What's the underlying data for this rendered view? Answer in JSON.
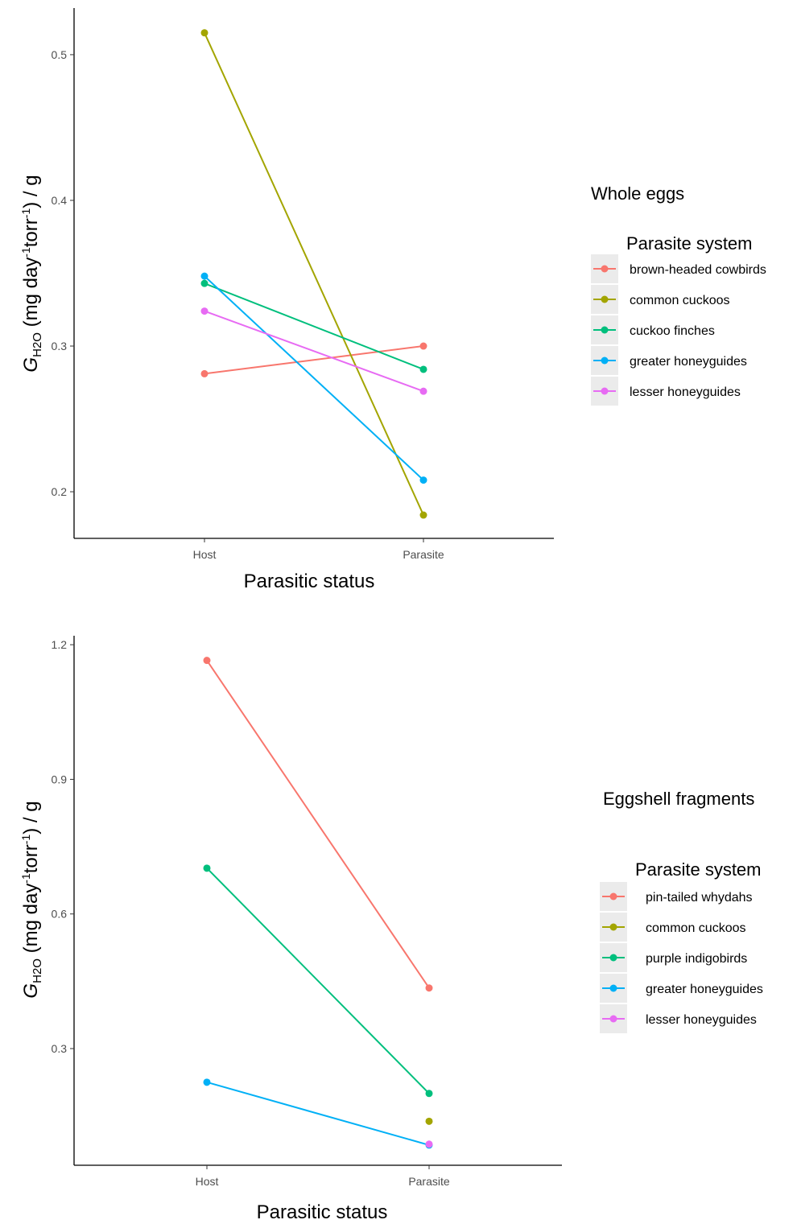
{
  "legend_title": "Parasite system",
  "chart_data": [
    {
      "type": "line",
      "caption": "Whole eggs",
      "categories": [
        "Host",
        "Parasite"
      ],
      "xlabel": "Parasitic status",
      "ylabel_main": "G",
      "ylabel_sub": "H2O",
      "ylabel_rest": " (mg day",
      "ylabel_sup1": "-1",
      "ylabel_rest2": "torr",
      "ylabel_sup2": "-1",
      "ylabel_rest3": ") / g",
      "ylim": [
        0.168,
        0.532
      ],
      "yticks": [
        0.2,
        0.3,
        0.4,
        0.5
      ],
      "ytick_labels": [
        "0.2",
        "0.3",
        "0.4",
        "0.5"
      ],
      "grid": false,
      "legend_position": "right",
      "series": [
        {
          "name": "brown-headed cowbirds",
          "color": "#F8766D",
          "values": [
            0.281,
            0.3
          ]
        },
        {
          "name": "common cuckoos",
          "color": "#A3A500",
          "values": [
            0.515,
            0.184
          ]
        },
        {
          "name": "cuckoo finches",
          "color": "#00BF7D",
          "values": [
            0.343,
            0.284
          ]
        },
        {
          "name": "greater honeyguides",
          "color": "#00B0F6",
          "values": [
            0.348,
            0.208
          ]
        },
        {
          "name": "lesser honeyguides",
          "color": "#E76BF3",
          "values": [
            0.324,
            0.269
          ]
        }
      ]
    },
    {
      "type": "line",
      "caption": "Eggshell fragments",
      "categories": [
        "Host",
        "Parasite"
      ],
      "xlabel": "Parasitic status",
      "ylabel_main": "G",
      "ylabel_sub": "H2O",
      "ylabel_rest": " (mg day",
      "ylabel_sup1": "-1",
      "ylabel_rest2": "torr",
      "ylabel_sup2": "-1",
      "ylabel_rest3": ") / g",
      "ylim": [
        0.04,
        1.22
      ],
      "yticks": [
        0.3,
        0.6,
        0.9,
        1.2
      ],
      "ytick_labels": [
        "0.3",
        "0.6",
        "0.9",
        "1.2"
      ],
      "grid": false,
      "legend_position": "right",
      "series": [
        {
          "name": "pin-tailed whydahs",
          "color": "#F8766D",
          "values": [
            1.165,
            0.435
          ]
        },
        {
          "name": "common cuckoos",
          "color": "#A3A500",
          "values": [
            null,
            0.138
          ]
        },
        {
          "name": "purple indigobirds",
          "color": "#00BF7D",
          "values": [
            0.702,
            0.2
          ]
        },
        {
          "name": "greater honeyguides",
          "color": "#00B0F6",
          "values": [
            0.225,
            0.085
          ]
        },
        {
          "name": "lesser honeyguides",
          "color": "#E76BF3",
          "values": [
            null,
            0.087
          ]
        }
      ]
    }
  ]
}
